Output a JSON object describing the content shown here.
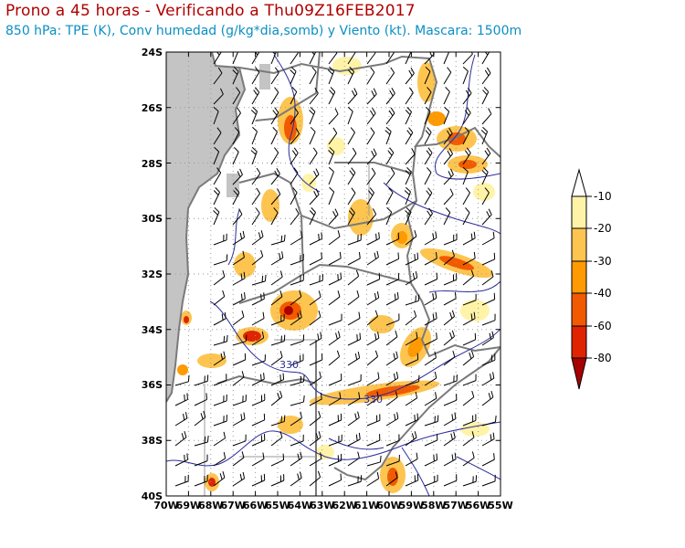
{
  "title": "Prono a 45 horas - Verificando a Thu09Z16FEB2017",
  "subtitle": "850 hPa: TPE (K), Conv humedad (g/kg*dia,somb) y Viento (kt). Mascara: 1500m",
  "map": {
    "lat_labels": [
      "24S",
      "26S",
      "28S",
      "30S",
      "32S",
      "34S",
      "36S",
      "38S",
      "40S"
    ],
    "lon_labels": [
      "70W",
      "69W",
      "68W",
      "67W",
      "66W",
      "65W",
      "64W",
      "63W",
      "62W",
      "61W",
      "60W",
      "59W",
      "58W",
      "57W",
      "56W",
      "55W"
    ],
    "contour_labels": [
      "330",
      "330"
    ],
    "colors": {
      "mask": "#c4c4c4",
      "contour": "#2c2c9c",
      "border": "#7a7a7a",
      "grid": "#9a9a9a"
    }
  },
  "colorbar": {
    "labels": [
      "-10",
      "-20",
      "-30",
      "-40",
      "-60",
      "-80"
    ],
    "colors": [
      "#ffffff",
      "#fff3a8",
      "#fdc550",
      "#ff9a00",
      "#f25a00",
      "#e02400",
      "#a80000"
    ]
  }
}
